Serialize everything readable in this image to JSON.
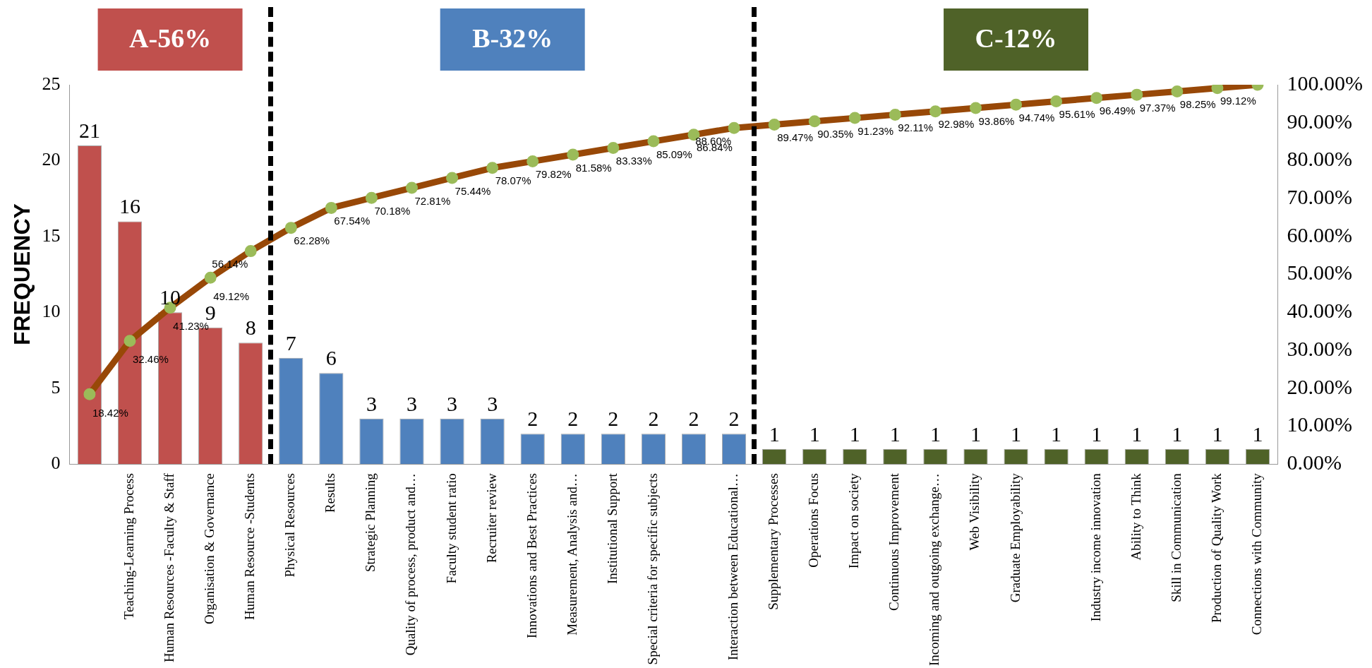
{
  "chart_data": {
    "type": "bar",
    "ylabel": "FREQUENCY",
    "categories": [
      null,
      "Teaching-Learning Process",
      "Human Resources -Faculty & Staff",
      "Organisation & Governance",
      "Human Resource -Students",
      "Physical Resources",
      "Results",
      "Strategic Planning",
      "Quality of process, product and…",
      "Faculty student ratio",
      "Recruiter review",
      "Innovations and Best Practices",
      "Measurement, Analysis and…",
      "Institutional Support",
      "Special criteria for specific subjects",
      null,
      "Interaction between Educational…",
      "Supplementary Processes",
      "Operations Focus",
      "Impact on society",
      "Continuous Improvement",
      "Incoming and outgoing exchange…",
      "Web Visibility",
      "Graduate Employability",
      null,
      "Industry income innovation",
      "Ability to Think",
      "Skill in Communication",
      "Production of Quality Work",
      "Connections with Community"
    ],
    "series": [
      {
        "values": [
          21,
          16,
          10,
          9,
          8,
          7,
          6,
          3,
          3,
          3,
          3,
          2,
          2,
          2,
          2,
          2,
          2,
          1,
          1,
          1,
          1,
          1,
          1,
          1,
          1,
          1,
          1,
          1,
          1,
          1
        ],
        "colors": [
          "#c0504d",
          "#c0504d",
          "#c0504d",
          "#c0504d",
          "#c0504d",
          "#4f81bd",
          "#4f81bd",
          "#4f81bd",
          "#4f81bd",
          "#4f81bd",
          "#4f81bd",
          "#4f81bd",
          "#4f81bd",
          "#4f81bd",
          "#4f81bd",
          "#4f81bd",
          "#4f81bd",
          "#4f6228",
          "#4f6228",
          "#4f6228",
          "#4f6228",
          "#4f6228",
          "#4f6228",
          "#4f6228",
          "#4f6228",
          "#4f6228",
          "#4f6228",
          "#4f6228",
          "#4f6228",
          "#4f6228"
        ]
      },
      {
        "type": "line",
        "axis": "y2",
        "color": "#984807",
        "marker": "circle",
        "values": [
          18.42,
          32.46,
          41.23,
          49.12,
          56.14,
          62.28,
          67.54,
          70.18,
          72.81,
          75.44,
          78.07,
          79.82,
          81.58,
          83.33,
          85.09,
          86.84,
          88.6,
          89.47,
          90.35,
          91.23,
          92.11,
          92.98,
          93.86,
          94.74,
          95.61,
          96.49,
          97.37,
          98.25,
          99.12,
          100
        ],
        "value_labels": [
          "18.42%",
          "32.46%",
          "41.23%",
          "49.12%",
          "56.14%",
          "62.28%",
          "67.54%",
          "70.18%",
          "72.81%",
          "75.44%",
          "78.07%",
          "79.82%",
          "81.58%",
          "83.33%",
          "85.09%",
          "86.84%",
          "88.60%",
          "89.47%",
          "90.35%",
          "91.23%",
          "92.11%",
          "92.98%",
          "93.86%",
          "94.74%",
          "95.61%",
          "96.49%",
          "97.37%",
          "98.25%",
          "99.12%",
          null
        ]
      }
    ],
    "data_labels": true,
    "ylim": [
      0,
      25
    ],
    "yticks": [
      0,
      5,
      10,
      15,
      20,
      25
    ],
    "y2lim": [
      0,
      100
    ],
    "y2ticks": [
      {
        "value": 0,
        "label": "0.00%"
      },
      {
        "value": 10,
        "label": "10.00%"
      },
      {
        "value": 20,
        "label": "20.00%"
      },
      {
        "value": 30,
        "label": "30.00%"
      },
      {
        "value": 40,
        "label": "40.00%"
      },
      {
        "value": 50,
        "label": "50.00%"
      },
      {
        "value": 60,
        "label": "60.00%"
      },
      {
        "value": 70,
        "label": "70.00%"
      },
      {
        "value": 80,
        "label": "80.00%"
      },
      {
        "value": 90,
        "label": "90.00%"
      },
      {
        "value": 100,
        "label": "100.00%"
      }
    ],
    "annotations": [
      "A-56%",
      "B-32%",
      "C-12%"
    ],
    "grid": false,
    "legend": false
  }
}
